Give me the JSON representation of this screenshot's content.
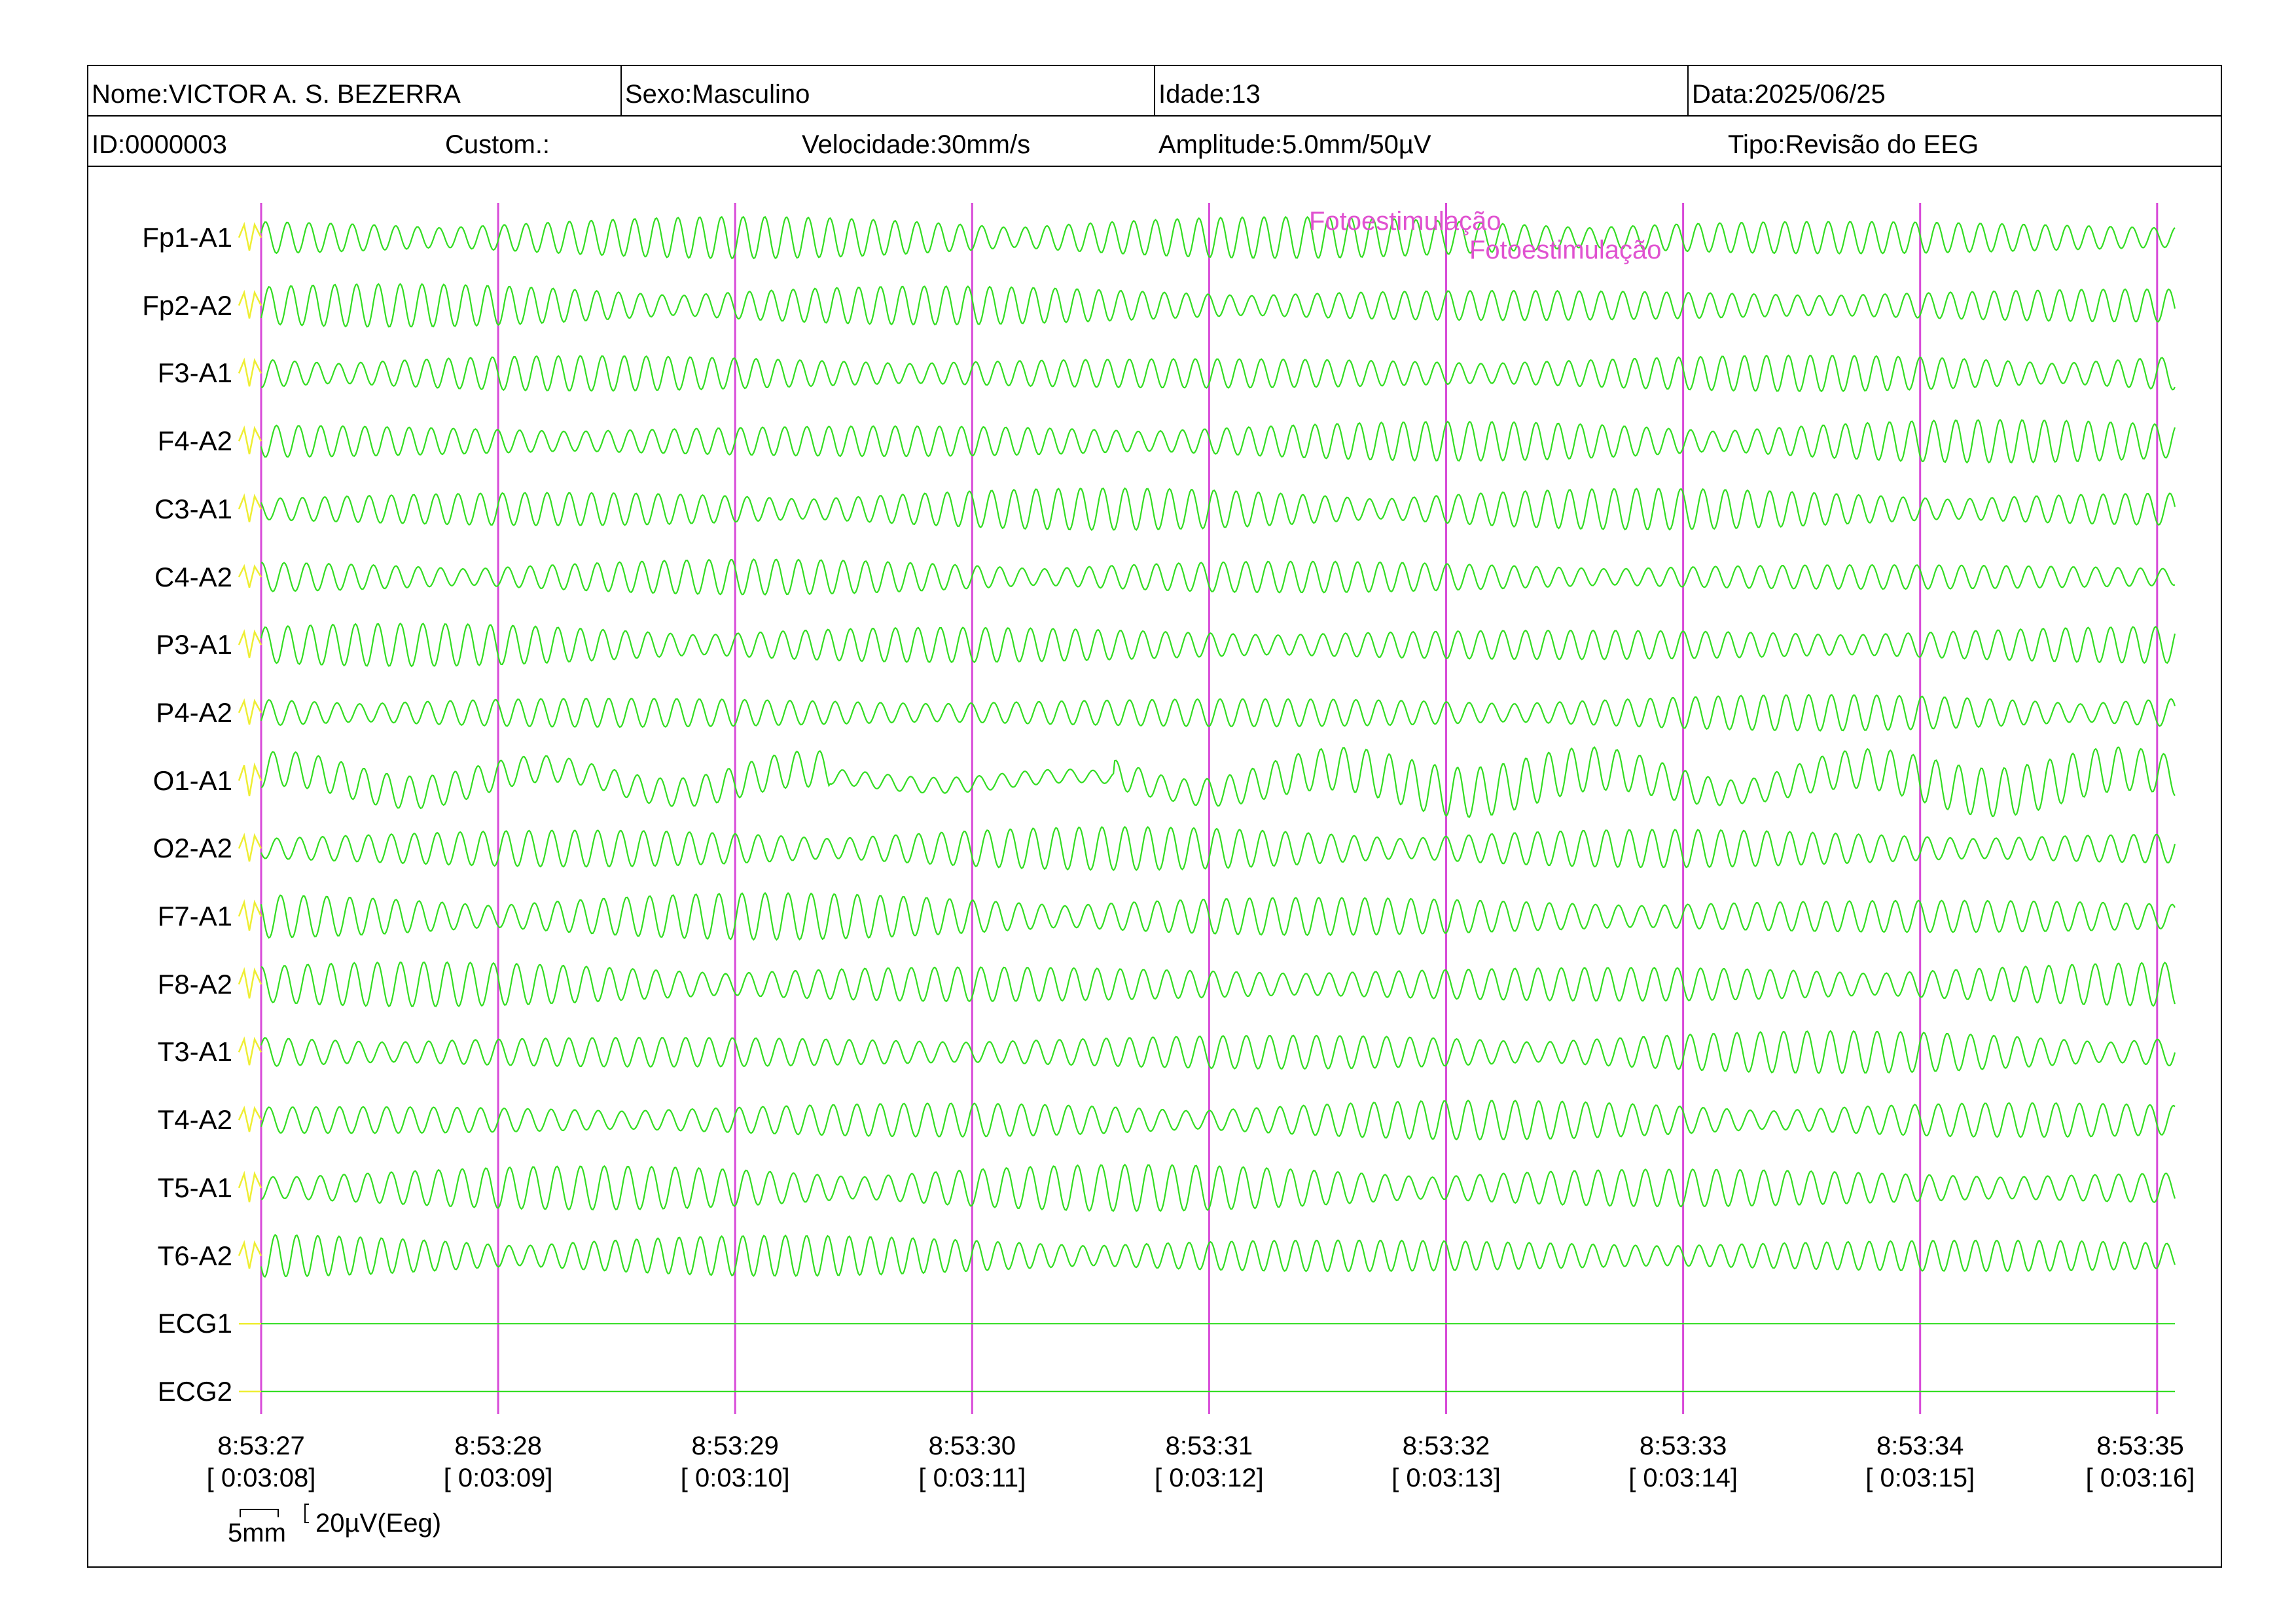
{
  "header": {
    "name": "Nome:VICTOR A. S. BEZERRA",
    "sex": "Sexo:Masculino",
    "age": "Idade:13",
    "date": "Data:2025/06/25",
    "id": "ID:0000003",
    "custom": "Custom.:",
    "speed": "Velocidade:30mm/s",
    "amplitude": "Amplitude:5.0mm/50µV",
    "type": "Tipo:Revisão do EEG"
  },
  "channels": [
    {
      "label": "Fp1-A1",
      "amp": 0.55,
      "seed": 1
    },
    {
      "label": "Fp2-A2",
      "amp": 0.55,
      "seed": 2
    },
    {
      "label": "F3-A1",
      "amp": 0.55,
      "seed": 3
    },
    {
      "label": "F4-A2",
      "amp": 0.55,
      "seed": 4
    },
    {
      "label": "C3-A1",
      "amp": 0.55,
      "seed": 5
    },
    {
      "label": "C4-A2",
      "amp": 0.45,
      "seed": 6
    },
    {
      "label": "P3-A1",
      "amp": 0.55,
      "seed": 7
    },
    {
      "label": "P4-A2",
      "amp": 0.5,
      "seed": 8
    },
    {
      "label": "O1-A1",
      "amp": 0.65,
      "seed": 9,
      "slow": true
    },
    {
      "label": "O2-A2",
      "amp": 0.55,
      "seed": 10
    },
    {
      "label": "F7-A1",
      "amp": 0.6,
      "seed": 11
    },
    {
      "label": "F8-A2",
      "amp": 0.6,
      "seed": 12
    },
    {
      "label": "T3-A1",
      "amp": 0.55,
      "seed": 13
    },
    {
      "label": "T4-A2",
      "amp": 0.5,
      "seed": 14
    },
    {
      "label": "T5-A1",
      "amp": 0.6,
      "seed": 15
    },
    {
      "label": "T6-A2",
      "amp": 0.55,
      "seed": 16
    },
    {
      "label": "ECG1",
      "amp": 0,
      "seed": 17,
      "flat": true
    },
    {
      "label": "ECG2",
      "amp": 0,
      "seed": 18,
      "flat": true
    }
  ],
  "time_marks": [
    {
      "clock": "8:53:27",
      "elapsed": "[ 0:03:08]"
    },
    {
      "clock": "8:53:28",
      "elapsed": "[ 0:03:09]"
    },
    {
      "clock": "8:53:29",
      "elapsed": "[ 0:03:10]"
    },
    {
      "clock": "8:53:30",
      "elapsed": "[ 0:03:11]"
    },
    {
      "clock": "8:53:31",
      "elapsed": "[ 0:03:12]"
    },
    {
      "clock": "8:53:32",
      "elapsed": "[ 0:03:13]"
    },
    {
      "clock": "8:53:33",
      "elapsed": "[ 0:03:14]"
    },
    {
      "clock": "8:53:34",
      "elapsed": "[ 0:03:15]"
    },
    {
      "clock": "8:53:35",
      "elapsed": "[ 0:03:16]"
    }
  ],
  "annotations": [
    {
      "text": "Fotoestimulação"
    },
    {
      "text": "Fotoestimulação"
    }
  ],
  "calibration": {
    "time_scale": "5mm",
    "amplitude_scale": "20µV(Eeg)"
  },
  "colors": {
    "trace": "#33dd22",
    "trace_start": "#eeee33",
    "second_marker": "#d84ad8",
    "annotation": "#e052d0",
    "border": "#000000"
  }
}
